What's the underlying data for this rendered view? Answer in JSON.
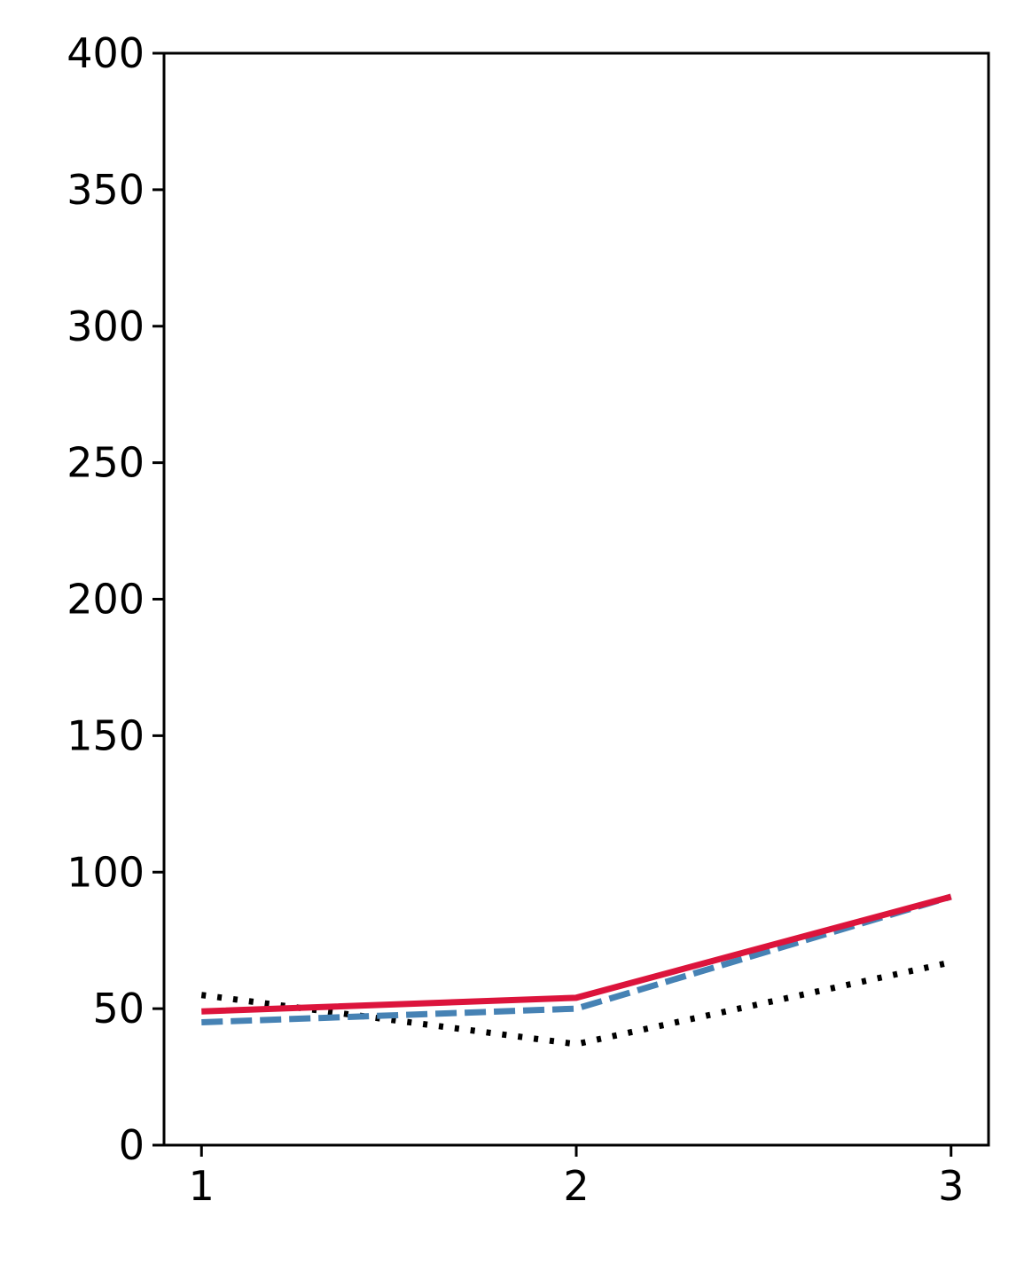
{
  "chart_data": {
    "type": "line",
    "title": "",
    "xlabel": "",
    "ylabel": "",
    "x": [
      1,
      2,
      3
    ],
    "xticks": [
      "1",
      "2",
      "3"
    ],
    "ylim": [
      0,
      400
    ],
    "yticks": [
      "0",
      "50",
      "100",
      "150",
      "200",
      "250",
      "300",
      "350",
      "400"
    ],
    "grid": false,
    "series": [
      {
        "values": [
          55,
          37,
          67
        ],
        "color": "#000000",
        "style": "dotted"
      },
      {
        "values": [
          45,
          50,
          91
        ],
        "color": "#4682b4",
        "style": "dashed"
      },
      {
        "values": [
          49,
          54,
          91
        ],
        "color": "#dc143c",
        "style": "solid"
      }
    ]
  }
}
